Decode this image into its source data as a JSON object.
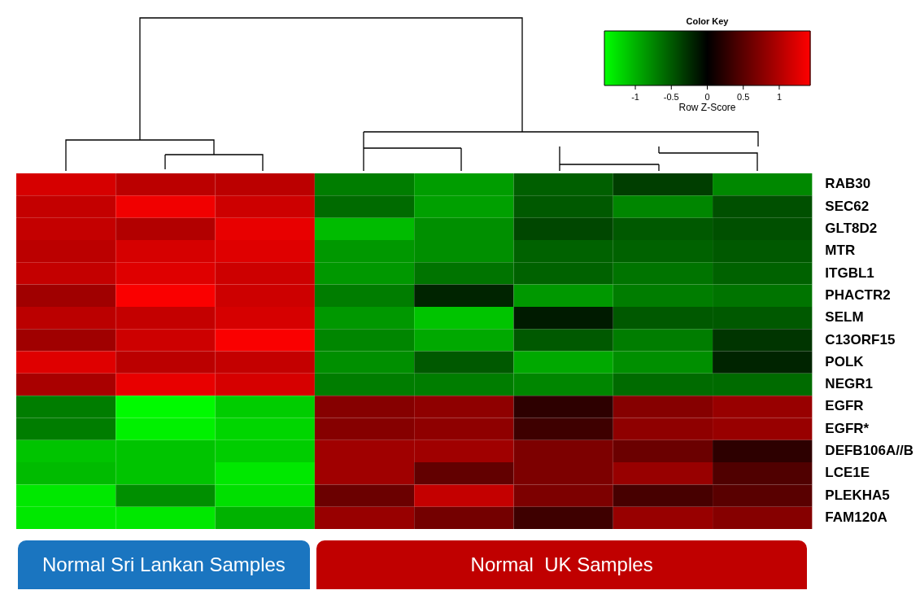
{
  "chart_data": {
    "type": "heatmap",
    "title": "Color Key",
    "clabel": "Row Z-Score",
    "categories": [
      null,
      null,
      null,
      null,
      null,
      null,
      null,
      null
    ],
    "y_categories": [
      "RAB30",
      "SEC62",
      "GLT8D2",
      "MTR",
      "ITGBL1",
      "PHACTR2",
      "SELM",
      "C13ORF15",
      "POLK",
      "NEGR1",
      "EGFR",
      "EGFR*",
      "DEFB106A//B",
      "LCE1E",
      "PLEKHA5",
      "FAM120A"
    ],
    "cells": [
      [
        1.2,
        1.05,
        1.05,
        -0.7,
        -0.88,
        -0.53,
        -0.35,
        -0.76
      ],
      [
        1.1,
        1.35,
        1.15,
        -0.6,
        -0.9,
        -0.5,
        -0.75,
        -0.45
      ],
      [
        1.1,
        1.0,
        1.3,
        -1.05,
        -0.8,
        -0.4,
        -0.5,
        -0.45
      ],
      [
        1.05,
        1.2,
        1.25,
        -0.85,
        -0.8,
        -0.55,
        -0.55,
        -0.5
      ],
      [
        1.1,
        1.25,
        1.15,
        -0.85,
        -0.65,
        -0.55,
        -0.65,
        -0.55
      ],
      [
        0.9,
        1.4,
        1.15,
        -0.7,
        -0.2,
        -0.85,
        -0.7,
        -0.65
      ],
      [
        1.05,
        1.1,
        1.2,
        -0.85,
        -1.1,
        -0.15,
        -0.5,
        -0.5
      ],
      [
        0.9,
        1.15,
        1.4,
        -0.75,
        -0.95,
        -0.5,
        -0.7,
        -0.3
      ],
      [
        1.25,
        1.05,
        1.1,
        -0.8,
        -0.5,
        -0.95,
        -0.8,
        -0.2
      ],
      [
        0.95,
        1.3,
        1.2,
        -0.7,
        -0.7,
        -0.75,
        -0.6,
        -0.6
      ],
      [
        -0.7,
        -1.4,
        -1.15,
        0.75,
        0.8,
        0.25,
        0.75,
        0.85
      ],
      [
        -0.7,
        -1.35,
        -1.2,
        0.75,
        0.8,
        0.35,
        0.8,
        0.85
      ],
      [
        -1.1,
        -1.1,
        -1.15,
        0.9,
        0.9,
        0.7,
        0.6,
        0.25
      ],
      [
        -1.05,
        -1.1,
        -1.3,
        0.9,
        0.55,
        0.7,
        0.85,
        0.45
      ],
      [
        -1.3,
        -0.8,
        -1.25,
        0.6,
        1.1,
        0.7,
        0.4,
        0.5
      ],
      [
        -1.3,
        -1.3,
        -1.0,
        0.85,
        0.65,
        0.35,
        0.85,
        0.75
      ]
    ],
    "clim": [
      -1.43,
      1.43
    ],
    "cticks": [
      -1,
      -0.5,
      0,
      0.5,
      1
    ],
    "annotations": [
      "Normal Sri Lankan Samples",
      "Normal  UK Samples"
    ]
  }
}
